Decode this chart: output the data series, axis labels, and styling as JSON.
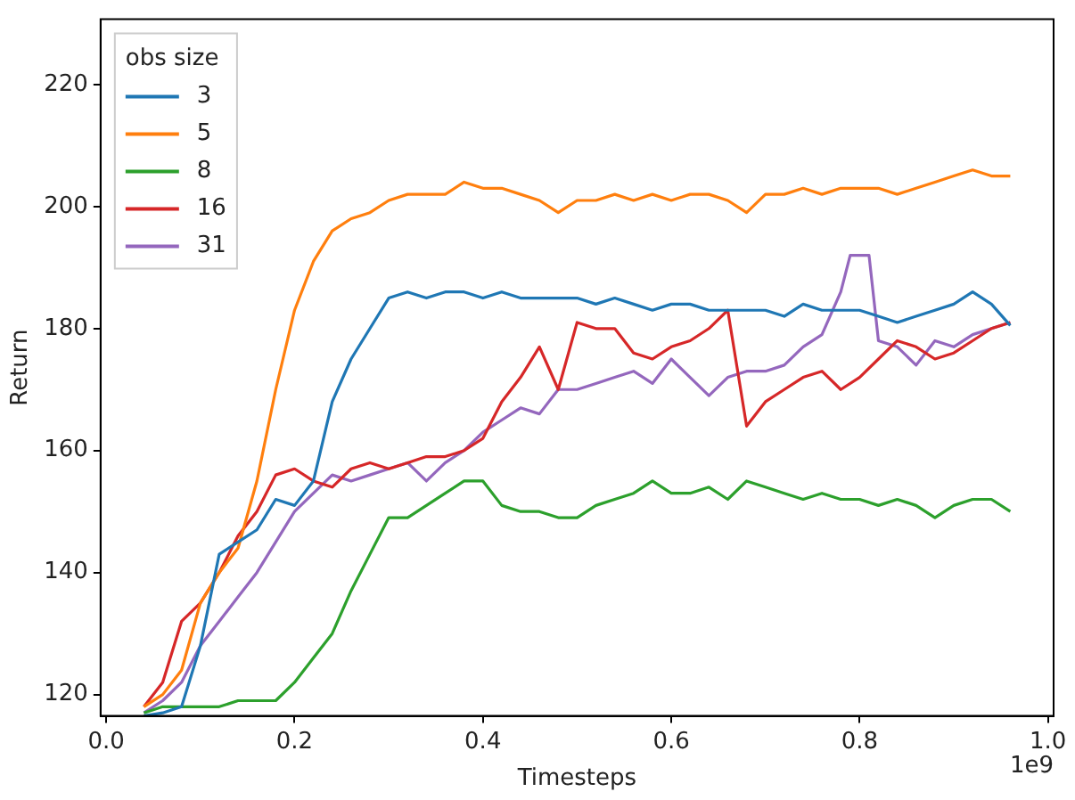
{
  "chart_data": {
    "type": "line",
    "xlabel": "Timesteps",
    "ylabel": "Return",
    "legend_title": "obs size",
    "legend": "top left",
    "grid": false,
    "marker": "none",
    "line_style": "solid",
    "annotations": [
      "1e9"
    ],
    "xlim": [
      -0.006,
      1.006
    ],
    "ylim": [
      116.5,
      230.7
    ],
    "xticks": [
      {
        "value": 0,
        "label": "0.0"
      },
      {
        "value": 0.2,
        "label": "0.2"
      },
      {
        "value": 0.4,
        "label": "0.4"
      },
      {
        "value": 0.6,
        "label": "0.6"
      },
      {
        "value": 0.8,
        "label": "0.8"
      },
      {
        "value": 1,
        "label": "1.0"
      }
    ],
    "yticks": [
      120,
      140,
      160,
      180,
      200,
      220
    ],
    "x": [
      0.04,
      0.06,
      0.08,
      0.1,
      0.12,
      0.14,
      0.16,
      0.18,
      0.2,
      0.22,
      0.24,
      0.26,
      0.28,
      0.3,
      0.32,
      0.34,
      0.36,
      0.38,
      0.4,
      0.42,
      0.44,
      0.46,
      0.48,
      0.5,
      0.52,
      0.54,
      0.56,
      0.58,
      0.6,
      0.62,
      0.64,
      0.66,
      0.68,
      0.7,
      0.72,
      0.74,
      0.76,
      0.78,
      0.8,
      0.82,
      0.84,
      0.86,
      0.88,
      0.9,
      0.92,
      0.94,
      0.96
    ],
    "series": [
      {
        "name": "3",
        "color": "#1f77b4",
        "values": [
          116.5,
          117,
          118,
          128,
          143,
          145,
          147,
          152,
          151,
          155,
          168,
          175,
          180,
          185,
          186,
          185,
          186,
          186,
          185,
          186,
          185,
          185,
          185,
          185,
          184,
          185,
          184,
          183,
          184,
          184,
          183,
          183,
          183,
          183,
          182,
          184,
          183,
          183,
          183,
          182,
          181,
          182,
          183,
          184,
          186,
          184,
          180.5
        ]
      },
      {
        "name": "5",
        "color": "#ff7f0e",
        "values": [
          118,
          120,
          124,
          135,
          140,
          144,
          155,
          170,
          183,
          191,
          196,
          198,
          199,
          201,
          202,
          202,
          202,
          204,
          203,
          203,
          202,
          201,
          199,
          201,
          201,
          202,
          201,
          202,
          201,
          202,
          202,
          201,
          199,
          202,
          202,
          203,
          202,
          203,
          203,
          203,
          202,
          203,
          204,
          205,
          206,
          205,
          205
        ]
      },
      {
        "name": "8",
        "color": "#2ca02c",
        "values": [
          117,
          118,
          118,
          118,
          118,
          119,
          119,
          119,
          122,
          126,
          130,
          137,
          143,
          149,
          149,
          151,
          153,
          155,
          155,
          151,
          150,
          150,
          149,
          149,
          151,
          152,
          153,
          155,
          153,
          153,
          154,
          152,
          155,
          154,
          153,
          152,
          153,
          152,
          152,
          151,
          152,
          151,
          149,
          151,
          152,
          152,
          150
        ]
      },
      {
        "name": "16",
        "color": "#d62728",
        "values": [
          118,
          122,
          132,
          135,
          140,
          146,
          150,
          156,
          157,
          155,
          154,
          157,
          158,
          157,
          158,
          159,
          159,
          160,
          162,
          168,
          172,
          177,
          170,
          181,
          180,
          180,
          176,
          175,
          177,
          178,
          180,
          183,
          164,
          168,
          170,
          172,
          173,
          170,
          172,
          175,
          178,
          177,
          175,
          176,
          178,
          180,
          181
        ]
      },
      {
        "name": "31",
        "color": "#9467bd",
        "x": [
          0.04,
          0.06,
          0.08,
          0.1,
          0.12,
          0.14,
          0.16,
          0.18,
          0.2,
          0.22,
          0.24,
          0.26,
          0.28,
          0.3,
          0.32,
          0.34,
          0.36,
          0.38,
          0.4,
          0.42,
          0.44,
          0.46,
          0.48,
          0.5,
          0.52,
          0.54,
          0.56,
          0.58,
          0.6,
          0.62,
          0.64,
          0.66,
          0.68,
          0.7,
          0.72,
          0.74,
          0.76,
          0.78,
          0.79,
          0.81,
          0.82,
          0.84,
          0.86,
          0.88,
          0.9,
          0.92,
          0.94,
          0.96
        ],
        "values": [
          117,
          119,
          122,
          128,
          132,
          136,
          140,
          145,
          150,
          153,
          156,
          155,
          156,
          157,
          158,
          155,
          158,
          160,
          163,
          165,
          167,
          166,
          170,
          170,
          171,
          172,
          173,
          171,
          175,
          172,
          169,
          172,
          173,
          173,
          174,
          177,
          179,
          186,
          192,
          192,
          178,
          177,
          174,
          178,
          177,
          179,
          180,
          181
        ]
      }
    ]
  }
}
